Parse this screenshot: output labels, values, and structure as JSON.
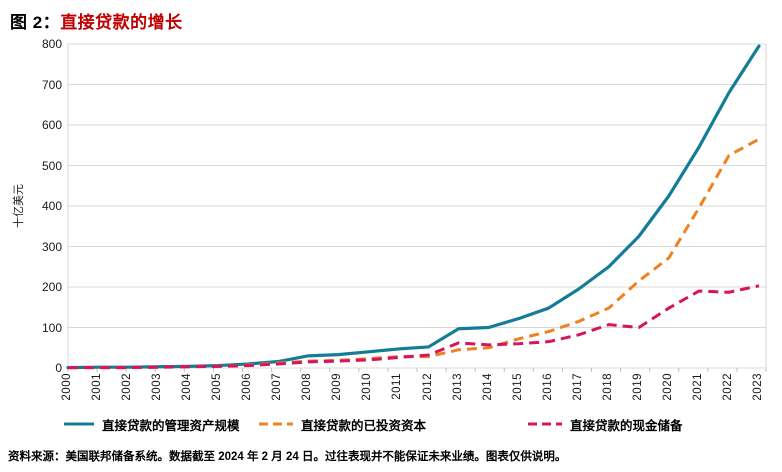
{
  "title": {
    "prefix": "图 2：",
    "main": "直接贷款的增长"
  },
  "footer": "资料来源：美国联邦储备系统。数据截至 2024 年 2 月 24 日。过往表现并不能保证未来业绩。图表仅供说明。",
  "colors": {
    "title_accent": "#c00000",
    "gridline": "#d9d9d9",
    "axis_tick": "#bfbfbf",
    "aum_line": "#137d96",
    "invested_line": "#ee8122",
    "reserve_line": "#d5155e"
  },
  "chart_data": {
    "type": "line",
    "title": "直接贷款的增长",
    "xlabel": "",
    "ylabel": "十亿美元",
    "ylim": [
      0,
      800
    ],
    "ytick_step": 100,
    "grid": true,
    "legend_position": "bottom",
    "categories": [
      "2000",
      "2001",
      "2002",
      "2003",
      "2004",
      "2005",
      "2006",
      "2007",
      "2008",
      "2009",
      "2010",
      "2011",
      "2012",
      "2013",
      "2014",
      "2015",
      "2016",
      "2017",
      "2018",
      "2019",
      "2020",
      "2021",
      "2022",
      "2023"
    ],
    "series": [
      {
        "name": "直接贷款的管理资产规模",
        "color": "#137d96",
        "style": "solid",
        "values": [
          1,
          2,
          2,
          3,
          4,
          6,
          10,
          16,
          30,
          33,
          40,
          47,
          52,
          97,
          100,
          122,
          148,
          195,
          250,
          325,
          425,
          545,
          680,
          795
        ]
      },
      {
        "name": "直接贷款的已投资资本",
        "color": "#ee8122",
        "style": "dashed",
        "values": [
          1,
          1,
          1,
          2,
          3,
          4,
          7,
          12,
          17,
          19,
          23,
          28,
          28,
          45,
          50,
          72,
          90,
          115,
          148,
          215,
          272,
          395,
          525,
          565
        ]
      },
      {
        "name": "直接贷款的现金储备",
        "color": "#d5155e",
        "style": "dashed",
        "values": [
          1,
          1,
          1,
          2,
          3,
          4,
          6,
          10,
          15,
          17,
          20,
          26,
          32,
          62,
          57,
          60,
          65,
          82,
          107,
          100,
          148,
          190,
          187,
          203
        ]
      }
    ]
  }
}
